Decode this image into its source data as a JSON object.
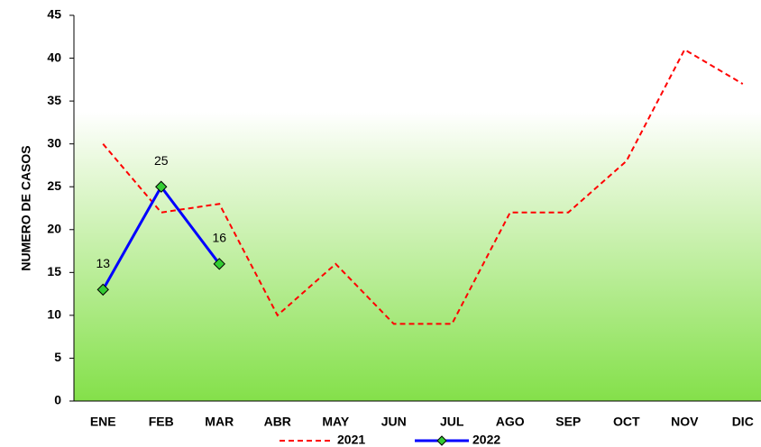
{
  "chart_data": {
    "type": "line",
    "y_label": "NUMERO DE CASOS",
    "categories": [
      "ENE",
      "FEB",
      "MAR",
      "ABR",
      "MAY",
      "JUN",
      "JUL",
      "AGO",
      "SEP",
      "OCT",
      "NOV",
      "DIC"
    ],
    "series": [
      {
        "name": "2021",
        "color": "#ff0000",
        "dashed": true,
        "values": [
          30,
          22,
          23,
          10,
          16,
          9,
          9,
          22,
          22,
          28,
          41,
          37
        ]
      },
      {
        "name": "2022",
        "color": "#0000ff",
        "marker_color": "#33cc33",
        "data_labels": true,
        "values": [
          13,
          25,
          16,
          null,
          null,
          null,
          null,
          null,
          null,
          null,
          null,
          null
        ]
      }
    ],
    "ylim": [
      0,
      45
    ],
    "yticks": [
      0,
      5,
      10,
      15,
      20,
      25,
      30,
      35,
      40,
      45
    ],
    "grid": false,
    "legend": "bottom"
  }
}
